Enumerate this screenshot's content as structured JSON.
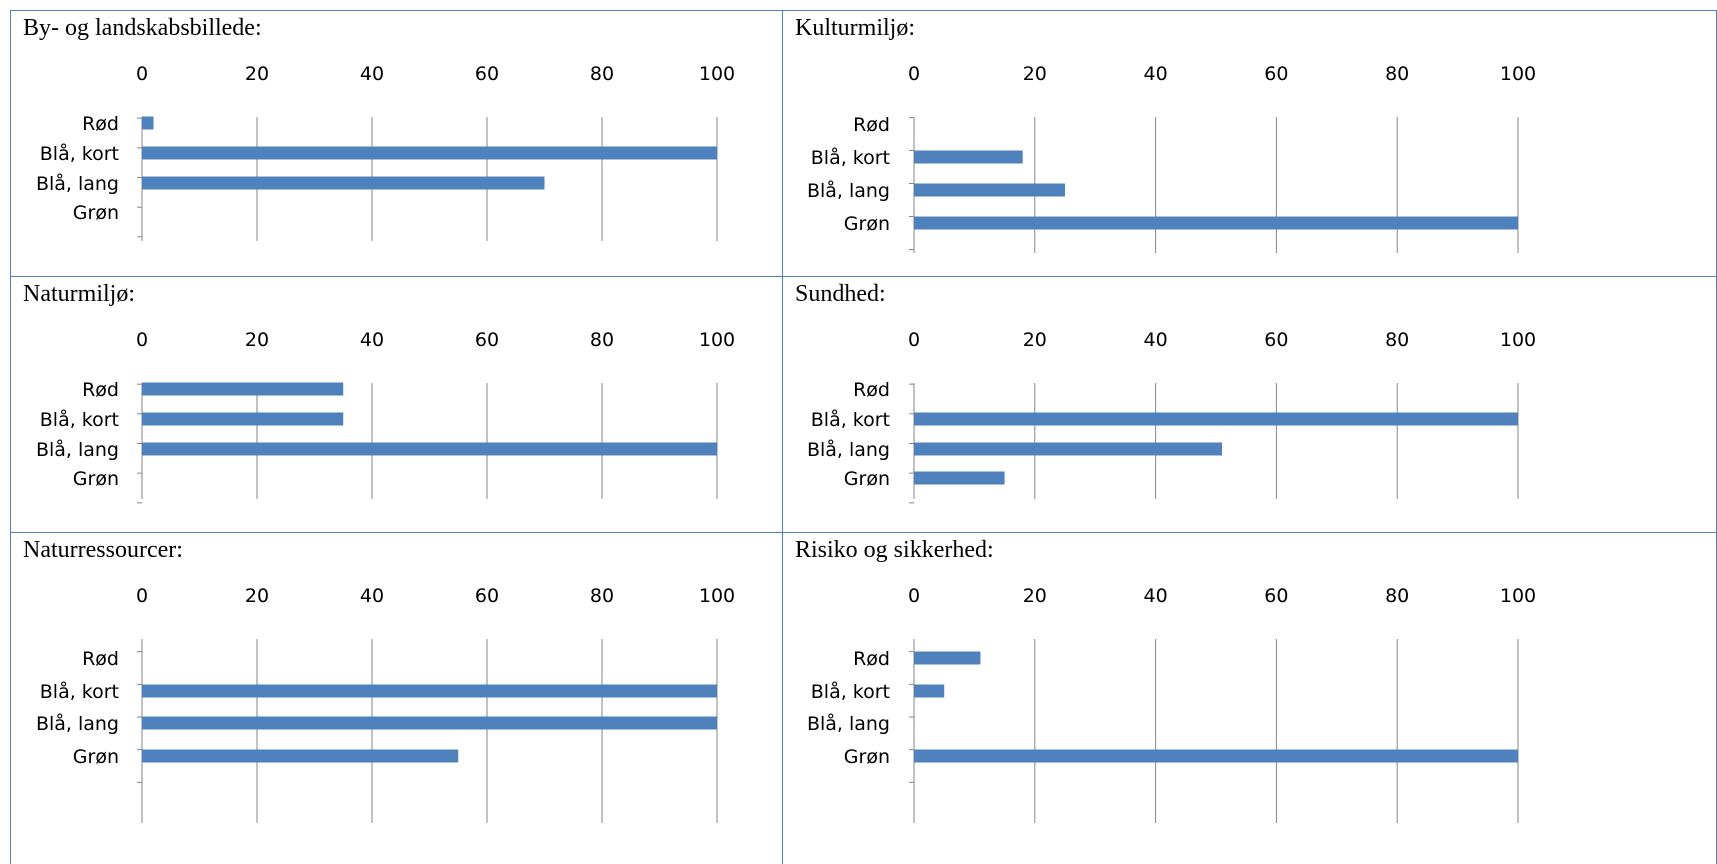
{
  "charts": [
    {
      "title": "By- og landskabsbillede:"
    },
    {
      "title": "Kulturmiljø:"
    },
    {
      "title": "Naturmiljø:"
    },
    {
      "title": "Sundhed:"
    },
    {
      "title": "Naturressourcer:"
    },
    {
      "title": "Risiko og sikkerhed:"
    }
  ],
  "colors": {
    "bar": "#4f81bd",
    "border": "#4f81bd",
    "gridline": "#868686"
  },
  "chart_data": [
    {
      "type": "bar",
      "orientation": "horizontal",
      "title": "By- og landskabsbillede:",
      "categories": [
        "Rød",
        "Blå, kort",
        "Blå, lang",
        "Grøn"
      ],
      "values": [
        2,
        100,
        70,
        0
      ],
      "xlim": [
        0,
        100
      ],
      "xticks": [
        "0",
        "20",
        "40",
        "60",
        "80",
        "100"
      ],
      "x_axis_position": "top",
      "grid": true,
      "legend": "none"
    },
    {
      "type": "bar",
      "orientation": "horizontal",
      "title": "Kulturmiljø:",
      "categories": [
        "Rød",
        "Blå, kort",
        "Blå, lang",
        "Grøn"
      ],
      "values": [
        0,
        18,
        25,
        100
      ],
      "xlim": [
        0,
        100
      ],
      "xticks": [
        "0",
        "20",
        "40",
        "60",
        "80",
        "100"
      ],
      "x_axis_position": "top",
      "grid": true,
      "legend": "none"
    },
    {
      "type": "bar",
      "orientation": "horizontal",
      "title": "Naturmiljø:",
      "categories": [
        "Rød",
        "Blå, kort",
        "Blå, lang",
        "Grøn"
      ],
      "values": [
        35,
        35,
        100,
        0
      ],
      "xlim": [
        0,
        100
      ],
      "xticks": [
        "0",
        "20",
        "40",
        "60",
        "80",
        "100"
      ],
      "x_axis_position": "top",
      "grid": true,
      "legend": "none"
    },
    {
      "type": "bar",
      "orientation": "horizontal",
      "title": "Sundhed:",
      "categories": [
        "Rød",
        "Blå, kort",
        "Blå, lang",
        "Grøn"
      ],
      "values": [
        0,
        100,
        51,
        15
      ],
      "xlim": [
        0,
        100
      ],
      "xticks": [
        "0",
        "20",
        "40",
        "60",
        "80",
        "100"
      ],
      "x_axis_position": "top",
      "grid": true,
      "legend": "none"
    },
    {
      "type": "bar",
      "orientation": "horizontal",
      "title": "Naturressourcer:",
      "categories": [
        "Rød",
        "Blå, kort",
        "Blå, lang",
        "Grøn"
      ],
      "values": [
        0,
        100,
        100,
        55
      ],
      "xlim": [
        0,
        100
      ],
      "xticks": [
        "0",
        "20",
        "40",
        "60",
        "80",
        "100"
      ],
      "x_axis_position": "top",
      "grid": true,
      "legend": "none"
    },
    {
      "type": "bar",
      "orientation": "horizontal",
      "title": "Risiko og sikkerhed:",
      "categories": [
        "Rød",
        "Blå, kort",
        "Blå, lang",
        "Grøn"
      ],
      "values": [
        11,
        5,
        0,
        100
      ],
      "xlim": [
        0,
        100
      ],
      "xticks": [
        "0",
        "20",
        "40",
        "60",
        "80",
        "100"
      ],
      "x_axis_position": "top",
      "grid": true,
      "legend": "none"
    }
  ]
}
